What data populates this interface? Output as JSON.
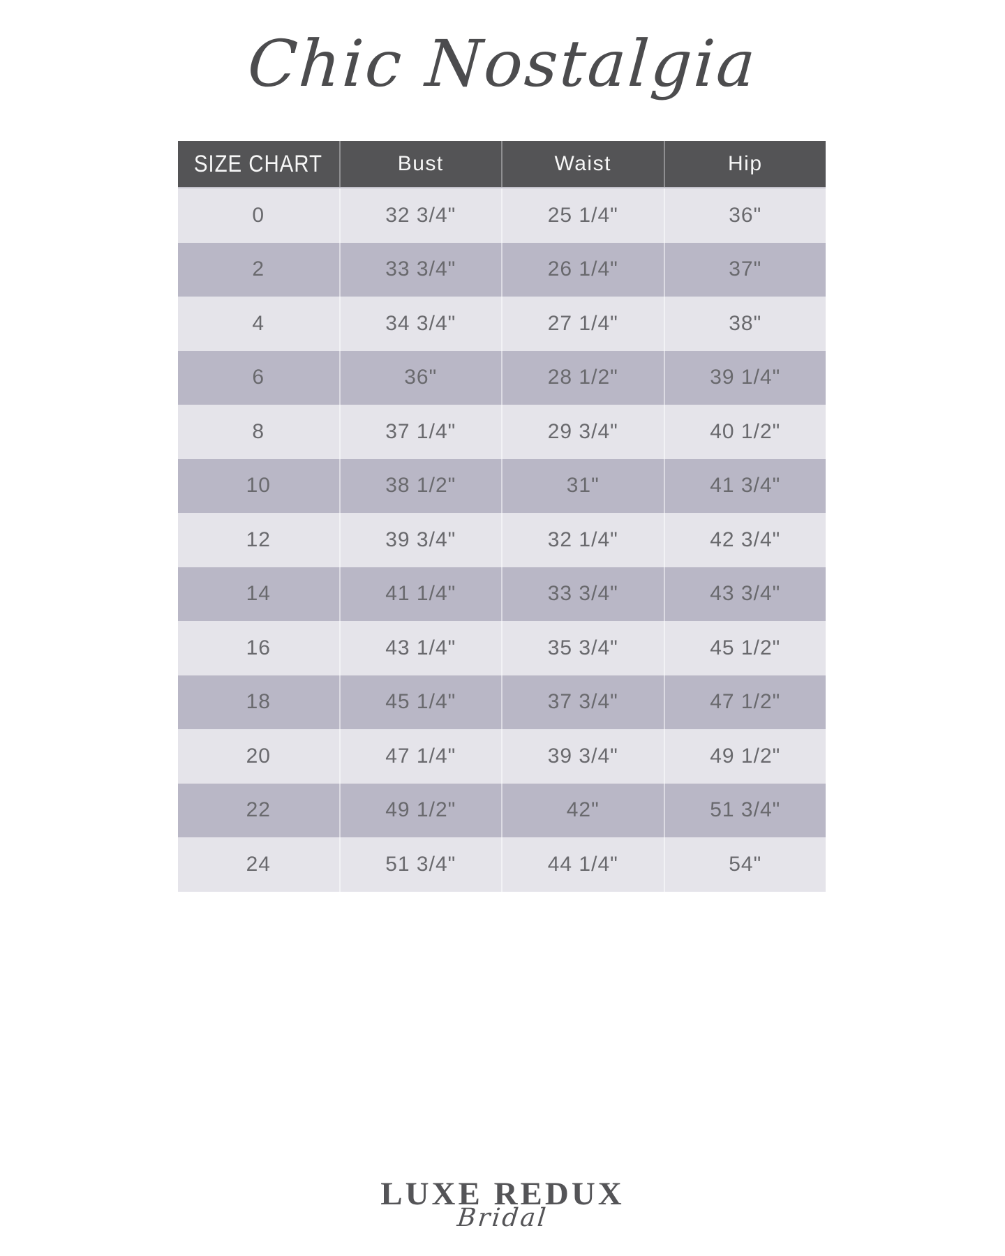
{
  "brand": {
    "title": "Chic Nostalgia"
  },
  "size_chart": {
    "header": {
      "label": "SIZE CHART",
      "columns": [
        "Bust",
        "Waist",
        "Hip"
      ]
    },
    "rows": [
      {
        "size": "0",
        "bust": "32 3/4\"",
        "waist": "25 1/4\"",
        "hip": "36\""
      },
      {
        "size": "2",
        "bust": "33 3/4\"",
        "waist": "26 1/4\"",
        "hip": "37\""
      },
      {
        "size": "4",
        "bust": "34 3/4\"",
        "waist": "27 1/4\"",
        "hip": "38\""
      },
      {
        "size": "6",
        "bust": "36\"",
        "waist": "28 1/2\"",
        "hip": "39 1/4\""
      },
      {
        "size": "8",
        "bust": "37 1/4\"",
        "waist": "29 3/4\"",
        "hip": "40 1/2\""
      },
      {
        "size": "10",
        "bust": "38 1/2\"",
        "waist": "31\"",
        "hip": "41 3/4\""
      },
      {
        "size": "12",
        "bust": "39 3/4\"",
        "waist": "32 1/4\"",
        "hip": "42 3/4\""
      },
      {
        "size": "14",
        "bust": "41 1/4\"",
        "waist": "33 3/4\"",
        "hip": "43 3/4\""
      },
      {
        "size": "16",
        "bust": "43 1/4\"",
        "waist": "35 3/4\"",
        "hip": "45 1/2\""
      },
      {
        "size": "18",
        "bust": "45 1/4\"",
        "waist": "37 3/4\"",
        "hip": "47 1/2\""
      },
      {
        "size": "20",
        "bust": "47 1/4\"",
        "waist": "39 3/4\"",
        "hip": "49 1/2\""
      },
      {
        "size": "22",
        "bust": "49 1/2\"",
        "waist": "42\"",
        "hip": "51 3/4\""
      },
      {
        "size": "24",
        "bust": "51 3/4\"",
        "waist": "44 1/4\"",
        "hip": "54\""
      }
    ]
  },
  "footer": {
    "logo_primary": "LUXE REDUX",
    "logo_secondary": "Bridal"
  },
  "colors": {
    "header_bg": "#545456",
    "header_text": "#f7f7f7",
    "row_light": "#e5e4ea",
    "row_dark": "#b9b7c6",
    "table_text": "#69696d",
    "brand_text": "#4c4c4e",
    "page_bg": "#ffffff"
  }
}
